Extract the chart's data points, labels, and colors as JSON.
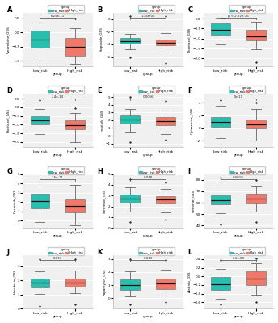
{
  "panels": [
    {
      "label": "A",
      "ylabel": "Vinorelbine_GSS",
      "pval": "6.25e-11",
      "low_med": -0.25,
      "low_q1": -0.55,
      "low_q3": 0.05,
      "low_wlo": -1.0,
      "low_whi": 0.35,
      "high_med": -0.5,
      "high_q1": -0.82,
      "high_q3": -0.18,
      "high_wlo": -1.1,
      "high_whi": 0.15,
      "low_out": [],
      "high_out": [
        0.5
      ],
      "ylim": [
        -1.2,
        0.7
      ]
    },
    {
      "label": "B",
      "ylabel": "Etoposide_GSS",
      "pval": "1.74e-08",
      "low_med": -3.5,
      "low_q1": -3.95,
      "low_q3": -3.05,
      "low_wlo": -4.8,
      "low_whi": -2.3,
      "high_med": -3.75,
      "high_q1": -4.15,
      "high_q3": -3.3,
      "high_wlo": -5.2,
      "high_whi": -2.2,
      "low_out": [
        -6.0,
        0.5
      ],
      "high_out": [
        -7.0,
        0.5
      ],
      "ylim": [
        -7.5,
        1.0
      ]
    },
    {
      "label": "C",
      "ylabel": "Docetaxel_GSS",
      "pval": "p < 2.22e-16",
      "low_med": -0.55,
      "low_q1": -0.82,
      "low_q3": -0.25,
      "low_wlo": -1.3,
      "low_whi": 0.05,
      "high_med": -0.88,
      "high_q1": -1.1,
      "high_q3": -0.58,
      "high_wlo": -1.55,
      "high_whi": -0.15,
      "low_out": [],
      "high_out": [
        -2.2
      ],
      "ylim": [
        -2.4,
        0.3
      ]
    },
    {
      "label": "D",
      "ylabel": "Paclitaxel_GSS",
      "pval": "2.4e-14",
      "low_med": -0.75,
      "low_q1": -0.98,
      "low_q3": -0.52,
      "low_wlo": -1.55,
      "low_whi": -0.1,
      "high_med": -1.02,
      "high_q1": -1.28,
      "high_q3": -0.75,
      "high_wlo": -2.0,
      "high_whi": -0.35,
      "low_out": [
        0.4
      ],
      "high_out": [
        -0.05
      ],
      "ylim": [
        -2.3,
        0.8
      ]
    },
    {
      "label": "E",
      "ylabel": "Imatinib_GSS",
      "pval": "0.0066",
      "low_med": 2.1,
      "low_q1": 1.55,
      "low_q3": 2.65,
      "low_wlo": 0.4,
      "low_whi": 3.5,
      "high_med": 1.9,
      "high_q1": 1.35,
      "high_q3": 2.45,
      "high_wlo": 0.2,
      "high_whi": 3.3,
      "low_out": [
        -0.8,
        5.0
      ],
      "high_out": [
        -0.5,
        4.5
      ],
      "ylim": [
        -1.5,
        5.5
      ]
    },
    {
      "label": "F",
      "ylabel": "Cytarabine_GSS",
      "pval": "5e-11",
      "low_med": 1.0,
      "low_q1": 0.2,
      "low_q3": 1.8,
      "low_wlo": -1.5,
      "low_whi": 3.5,
      "high_med": 0.65,
      "high_q1": -0.05,
      "high_q3": 1.4,
      "high_wlo": -2.0,
      "high_whi": 3.0,
      "low_out": [
        4.5
      ],
      "high_out": [
        4.0
      ],
      "ylim": [
        -3.0,
        5.5
      ]
    },
    {
      "label": "G",
      "ylabel": "Dasatinib_GSS",
      "pval": "2.6e-11",
      "low_med": 2.1,
      "low_q1": 1.3,
      "low_q3": 2.9,
      "low_wlo": -0.2,
      "low_whi": 4.2,
      "high_med": 1.6,
      "high_q1": 0.9,
      "high_q3": 2.3,
      "high_wlo": -0.5,
      "high_whi": 3.8,
      "low_out": [],
      "high_out": [],
      "ylim": [
        -0.8,
        5.0
      ]
    },
    {
      "label": "H",
      "ylabel": "Sorafenib_GSS",
      "pval": "0.048",
      "low_med": 2.7,
      "low_q1": 2.35,
      "low_q3": 3.08,
      "low_wlo": 1.55,
      "low_whi": 3.75,
      "high_med": 2.62,
      "high_q1": 2.28,
      "high_q3": 2.98,
      "high_wlo": 1.45,
      "high_whi": 3.65,
      "low_out": [
        0.55,
        4.5
      ],
      "high_out": [
        0.75,
        4.2
      ],
      "ylim": [
        0.0,
        5.0
      ]
    },
    {
      "label": "I",
      "ylabel": "Gefitinib_GSS",
      "pval": "0.0018",
      "low_med": 62.5,
      "low_q1": 58.5,
      "low_q3": 66.5,
      "low_wlo": 51.0,
      "low_whi": 74.0,
      "high_med": 63.5,
      "high_q1": 59.5,
      "high_q3": 67.5,
      "high_wlo": 52.0,
      "high_whi": 75.0,
      "low_out": [
        41.0,
        82.0
      ],
      "high_out": [
        43.0,
        80.0
      ],
      "ylim": [
        38.0,
        85.0
      ]
    },
    {
      "label": "J",
      "ylabel": "Idarubicin_GSS",
      "pval": "0.013",
      "low_med": 1.82,
      "low_q1": 1.52,
      "low_q3": 2.12,
      "low_wlo": 1.05,
      "low_whi": 2.65,
      "high_med": 1.85,
      "high_q1": 1.55,
      "high_q3": 2.15,
      "high_wlo": 1.1,
      "high_whi": 2.7,
      "low_out": [
        0.2,
        3.5
      ],
      "high_out": [
        0.3,
        3.5
      ],
      "ylim": [
        0.0,
        3.8
      ]
    },
    {
      "label": "K",
      "ylabel": "Rapamycin_GSS",
      "pval": "0.013",
      "low_med": 1.02,
      "low_q1": 0.62,
      "low_q3": 1.42,
      "low_wlo": 0.12,
      "low_whi": 2.05,
      "high_med": 1.12,
      "high_q1": 0.72,
      "high_q3": 1.52,
      "high_wlo": 0.22,
      "high_whi": 2.15,
      "low_out": [
        -0.5,
        3.0
      ],
      "high_out": [
        -0.3,
        2.9
      ],
      "ylim": [
        -0.8,
        3.3
      ]
    },
    {
      "label": "L",
      "ylabel": "Afatinib_GSS",
      "pval": "2.1e-08",
      "low_med": -0.18,
      "low_q1": -0.32,
      "low_q3": -0.02,
      "low_wlo": -0.52,
      "low_whi": 0.18,
      "high_med": -0.05,
      "high_q1": -0.2,
      "high_q3": 0.12,
      "high_wlo": -0.42,
      "high_whi": 0.3,
      "low_out": [
        -0.65,
        0.38
      ],
      "high_out": [
        -0.6,
        0.42
      ],
      "ylim": [
        -0.75,
        0.5
      ]
    }
  ],
  "teal_color": "#29bfb0",
  "salmon_color": "#f07868",
  "bg_color": "#f0f0f0",
  "grid_color": "#ffffff",
  "low_label": "Low_risk",
  "high_label": "High_risk",
  "xlabel": "group",
  "legend_title": "group"
}
